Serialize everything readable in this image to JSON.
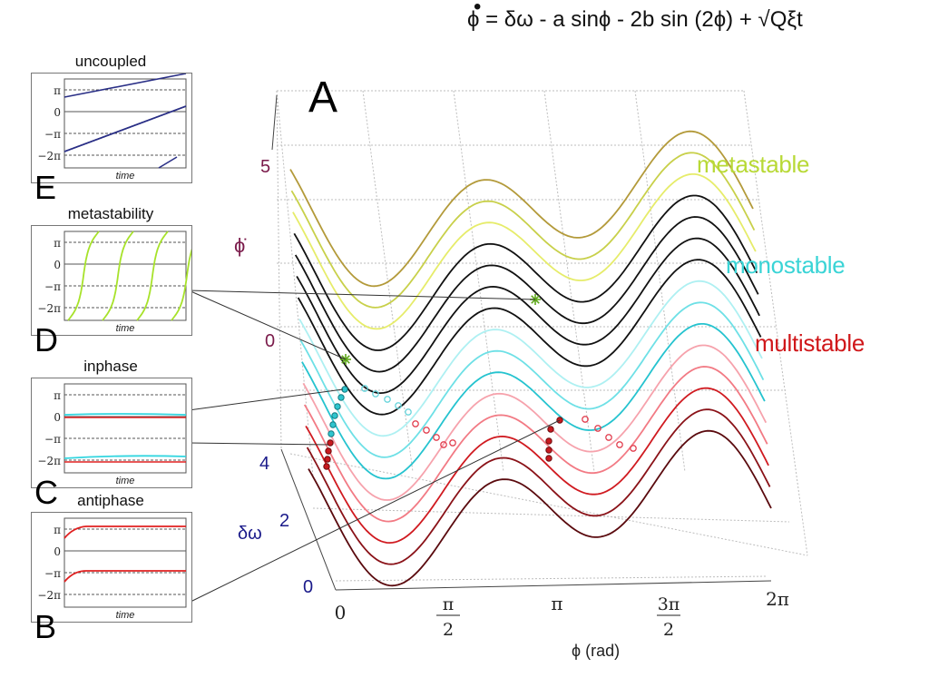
{
  "equation": "ϕ = δω - a sinϕ - 2b sin (2ϕ) + √Qξt",
  "main_label": "A",
  "regions": {
    "metastable": {
      "label": "metastable",
      "color": "#b8d936"
    },
    "monostable": {
      "label": "monostable",
      "color": "#3ad4d6"
    },
    "multistable": {
      "label": "multistable",
      "color": "#d0171a"
    }
  },
  "axes": {
    "phidot_label": "ϕ̇",
    "phi_label": "ϕ (rad)",
    "dw_label": "δω",
    "phidot_ticks": [
      "5",
      "0"
    ],
    "dw_ticks": [
      "4",
      "2",
      "0"
    ],
    "phi_ticks": [
      "0",
      "π/2",
      "π",
      "3π/2",
      "2π"
    ]
  },
  "panels": [
    {
      "letter": "E",
      "title": "uncoupled",
      "xlabel": "time",
      "yticks": [
        "π",
        "0",
        "−π",
        "−2π"
      ],
      "color": "#2a2f86"
    },
    {
      "letter": "D",
      "title": "metastability",
      "xlabel": "time",
      "yticks": [
        "π",
        "0",
        "−π",
        "−2π"
      ],
      "color": "#a7e22a"
    },
    {
      "letter": "C",
      "title": "inphase",
      "xlabel": "time",
      "yticks": [
        "π",
        "0",
        "−π",
        "−2π"
      ],
      "color": "#33d6e0"
    },
    {
      "letter": "B",
      "title": "antiphase",
      "xlabel": "time",
      "yticks": [
        "π",
        "0",
        "−π",
        "−2π"
      ],
      "color": "#e02020"
    }
  ],
  "chart_data": {
    "type": "line",
    "function": "ϕ̇ = δω - a sinϕ - 2b sin(2ϕ)",
    "x_label": "ϕ (rad)",
    "y_label": "ϕ̇",
    "z_label": "δω",
    "x_range": [
      0,
      6.2832
    ],
    "z_range": [
      0,
      5
    ],
    "series_count": 15,
    "curve_colors": {
      "multistable": [
        "#5a0a0e",
        "#8a1218",
        "#d01a20",
        "#f27a84",
        "#f6a2ac"
      ],
      "monostable": [
        "#25c3cf",
        "#6ee0e6",
        "#aef0f2"
      ],
      "black": [
        "#111111",
        "#111111",
        "#111111",
        "#111111"
      ],
      "metastable": [
        "#e6ec6a",
        "#c8d04a",
        "#b39a3a"
      ]
    }
  }
}
